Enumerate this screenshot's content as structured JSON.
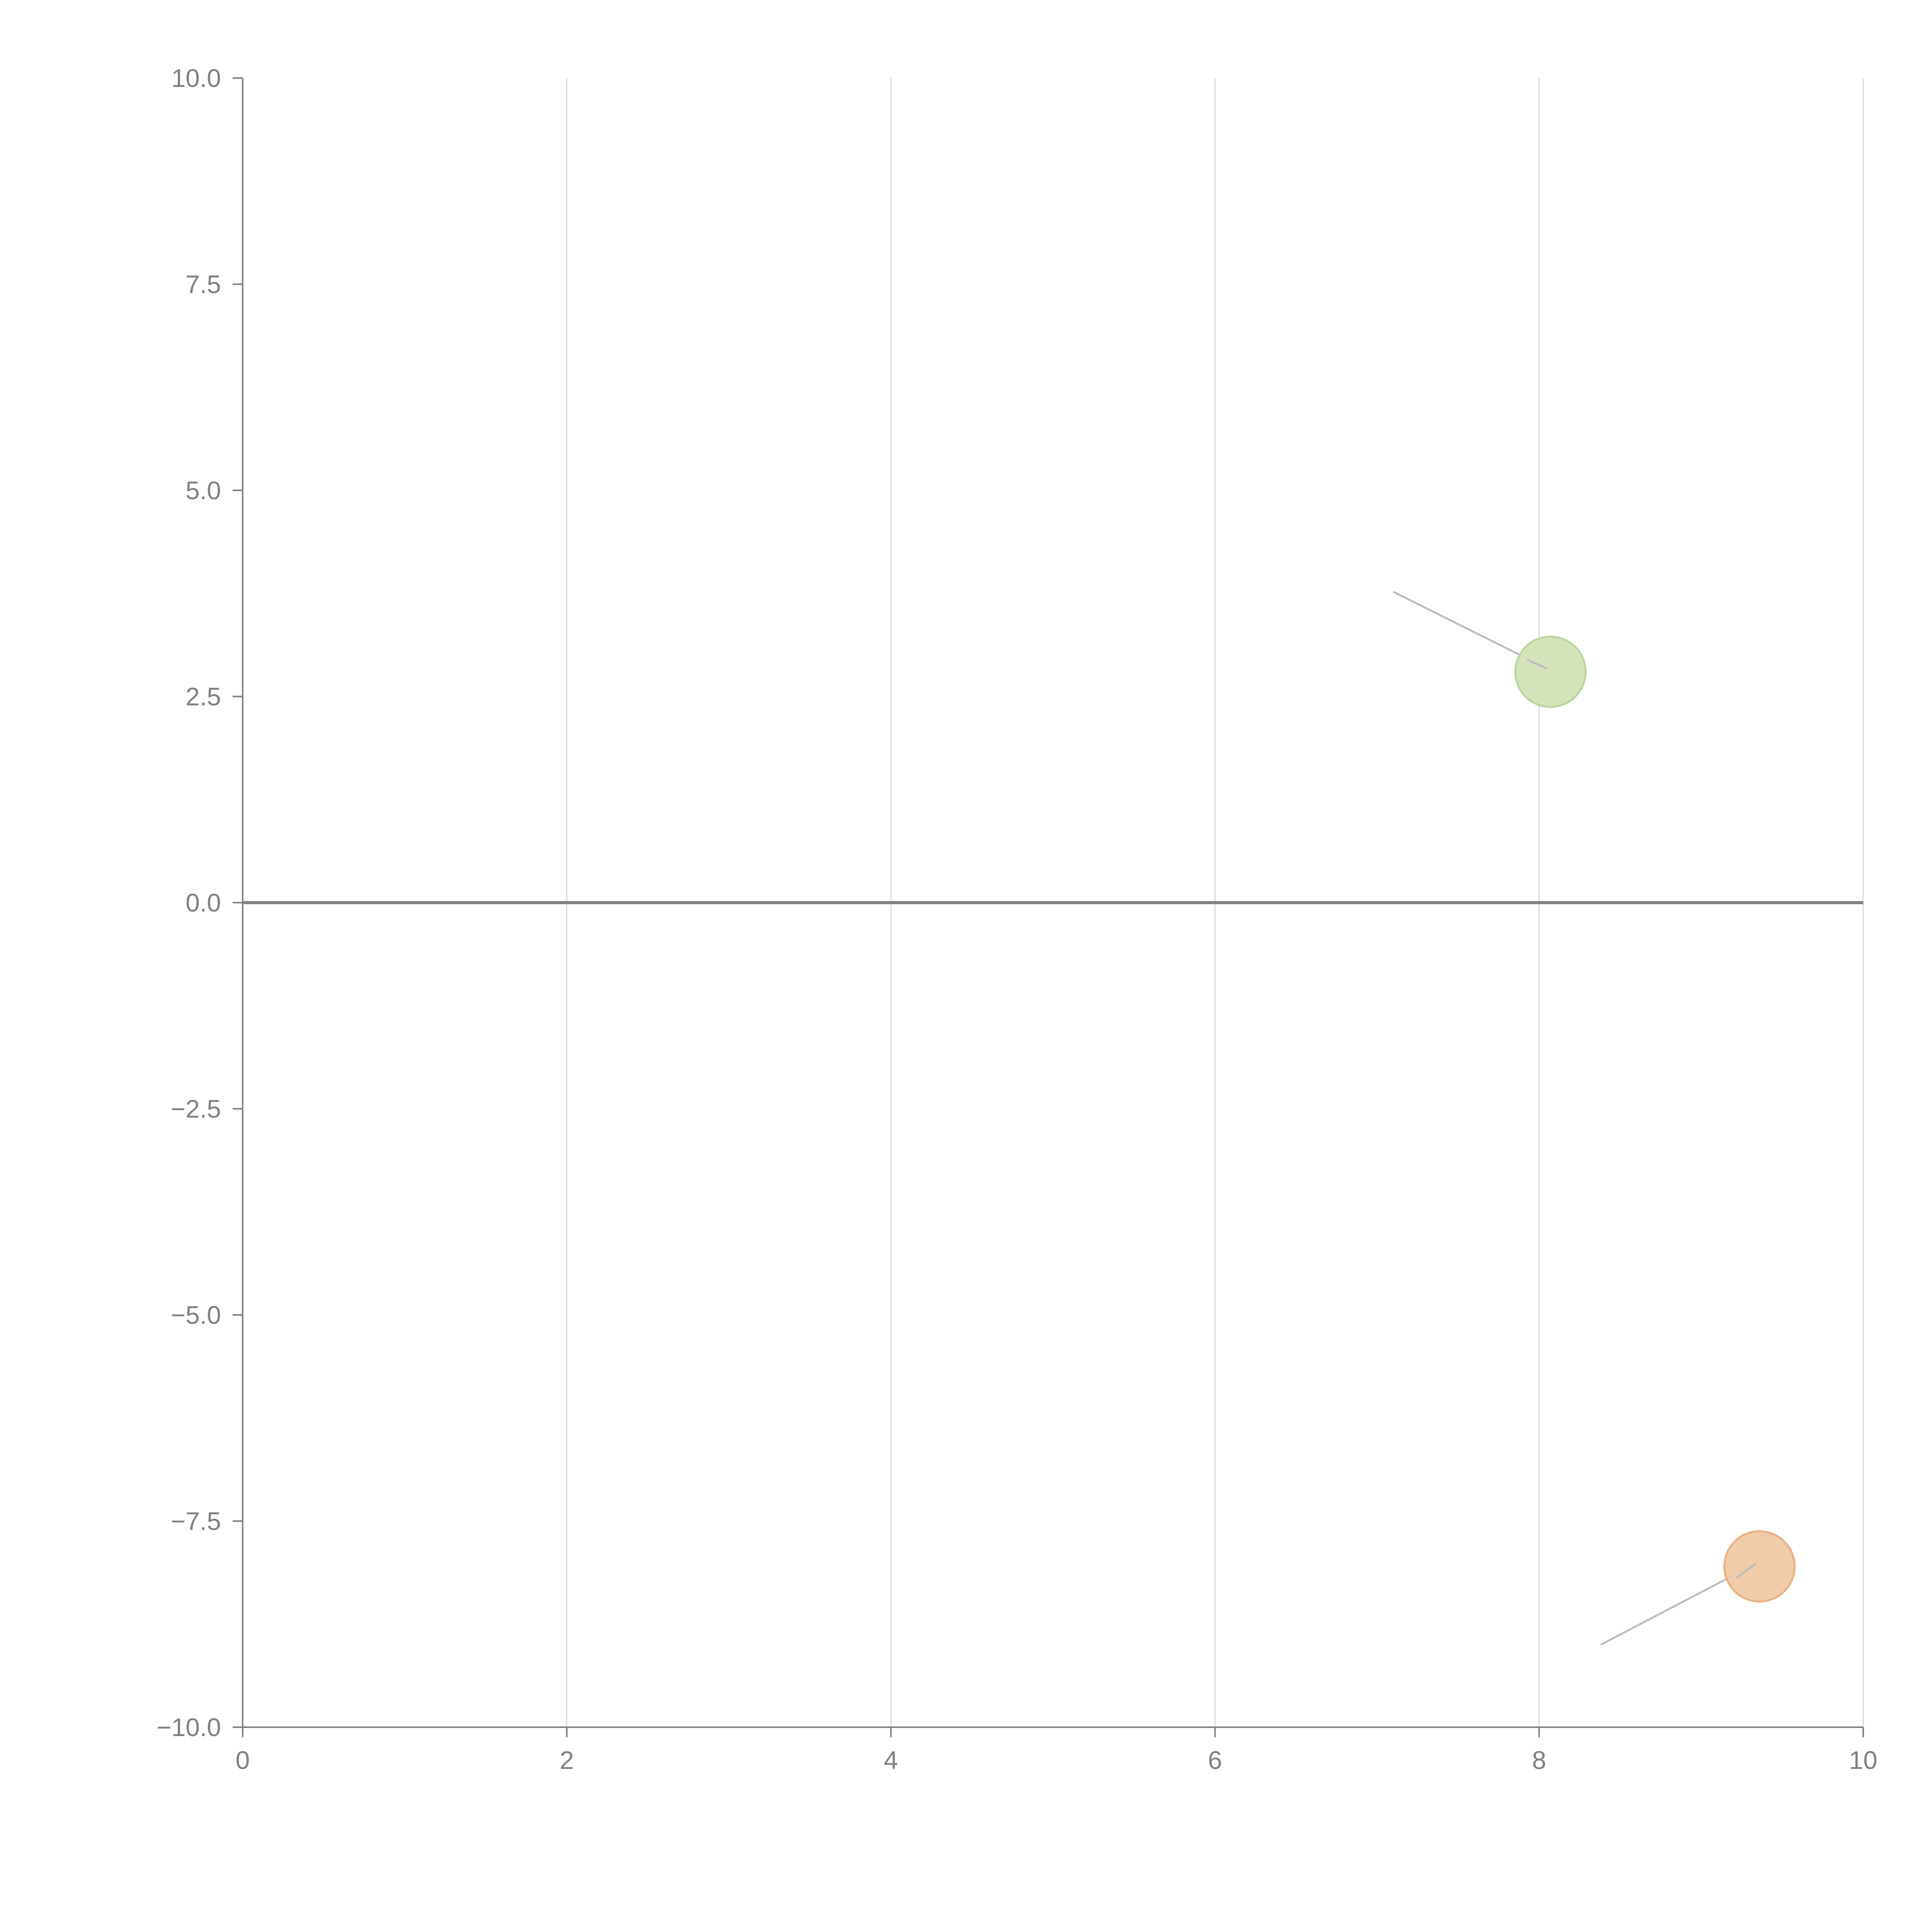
{
  "chart_data": {
    "type": "scatter",
    "title": "",
    "xlabel": "",
    "ylabel": "",
    "xlim": [
      0,
      10
    ],
    "ylim": [
      -10,
      10
    ],
    "x_ticks": [
      "0",
      "2",
      "4",
      "6",
      "8",
      "10"
    ],
    "x_tick_values": [
      0,
      2,
      4,
      6,
      8,
      10
    ],
    "y_ticks": [
      "10.0",
      "7.5",
      "5.0",
      "2.5",
      "0.0",
      "−2.5",
      "−5.0",
      "−7.5",
      "−10.0"
    ],
    "y_tick_values": [
      10,
      7.5,
      5,
      2.5,
      0,
      -2.5,
      -5,
      -7.5,
      -10
    ],
    "grid": "vertical",
    "zero_line": true,
    "points": [
      {
        "x": 8.07,
        "y": 2.8,
        "color": "#d3e1b7",
        "stroke": "#bcd49b",
        "label_x": 7.1,
        "label_y": 3.77
      },
      {
        "x": 9.36,
        "y": -8.05,
        "color": "#f0c9a6",
        "stroke": "#ebb081",
        "label_x": 8.38,
        "label_y": -9.0
      }
    ]
  }
}
